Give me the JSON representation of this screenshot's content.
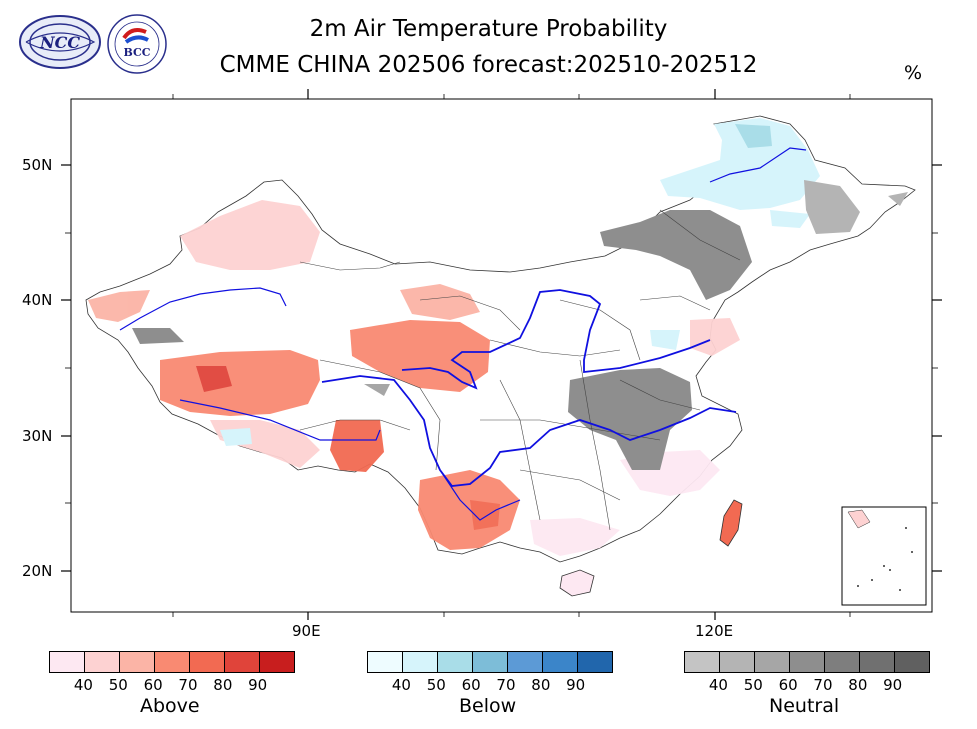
{
  "title": {
    "line1": "2m Air Temperature Probability",
    "line2": "CMME CHINA 202506 forecast:202510-202512",
    "unit": "%"
  },
  "logos": {
    "left": "NCC",
    "right": "BCC"
  },
  "axes": {
    "lat_labels": [
      "50N",
      "40N",
      "30N",
      "20N"
    ],
    "lon_labels": [
      "90E",
      "120E"
    ]
  },
  "colorbars": [
    {
      "name": "Above",
      "ticks": [
        "40",
        "50",
        "60",
        "70",
        "80",
        "90"
      ],
      "colors": [
        "#fde8f2",
        "#fdd2d2",
        "#fbb4a6",
        "#f98a72",
        "#f26a52",
        "#e0443a",
        "#c81e1e"
      ]
    },
    {
      "name": "Below",
      "ticks": [
        "40",
        "50",
        "60",
        "70",
        "80",
        "90"
      ],
      "colors": [
        "#eefcff",
        "#d6f4fb",
        "#a9dde8",
        "#7dbdd8",
        "#5c9ad6",
        "#3b85c9",
        "#2166ac"
      ]
    },
    {
      "name": "Neutral",
      "ticks": [
        "40",
        "50",
        "60",
        "70",
        "80",
        "90"
      ],
      "colors": [
        "#c4c4c4",
        "#b4b4b4",
        "#a6a6a6",
        "#8e8e8e",
        "#7e7e7e",
        "#707070",
        "#606060"
      ]
    }
  ]
}
